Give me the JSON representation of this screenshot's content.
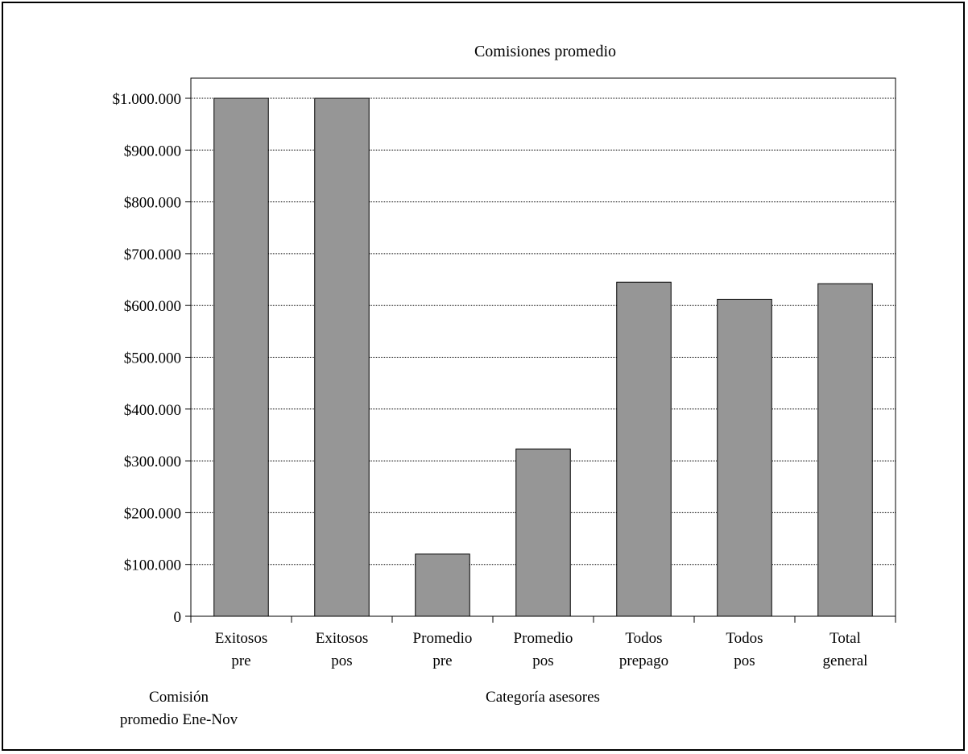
{
  "chart_data": {
    "type": "bar",
    "title": "Comisiones promedio",
    "xlabel": "Categoría asesores",
    "ylabel": "Comisión promedio Ene-Nov",
    "categories": [
      [
        "Exitosos",
        "pre"
      ],
      [
        "Exitosos",
        "pos"
      ],
      [
        "Promedio",
        "pre"
      ],
      [
        "Promedio",
        "pos"
      ],
      [
        "Todos",
        "prepago"
      ],
      [
        "Todos",
        "pos"
      ],
      [
        "Total",
        "general"
      ]
    ],
    "values": [
      1000000,
      1000000,
      120000,
      323000,
      645000,
      612000,
      642000
    ],
    "ylim": [
      0,
      1000000
    ],
    "yticks": [
      0,
      100000,
      200000,
      300000,
      400000,
      500000,
      600000,
      700000,
      800000,
      900000,
      1000000
    ],
    "ytick_labels": [
      "0",
      "$100.000",
      "$200.000",
      "$300.000",
      "$400.000",
      "$500.000",
      "$600.000",
      "$700.000",
      "$800.000",
      "$900.000",
      "$1.000.000"
    ],
    "grid": true,
    "bar_color": "#969696",
    "legend": "none"
  }
}
